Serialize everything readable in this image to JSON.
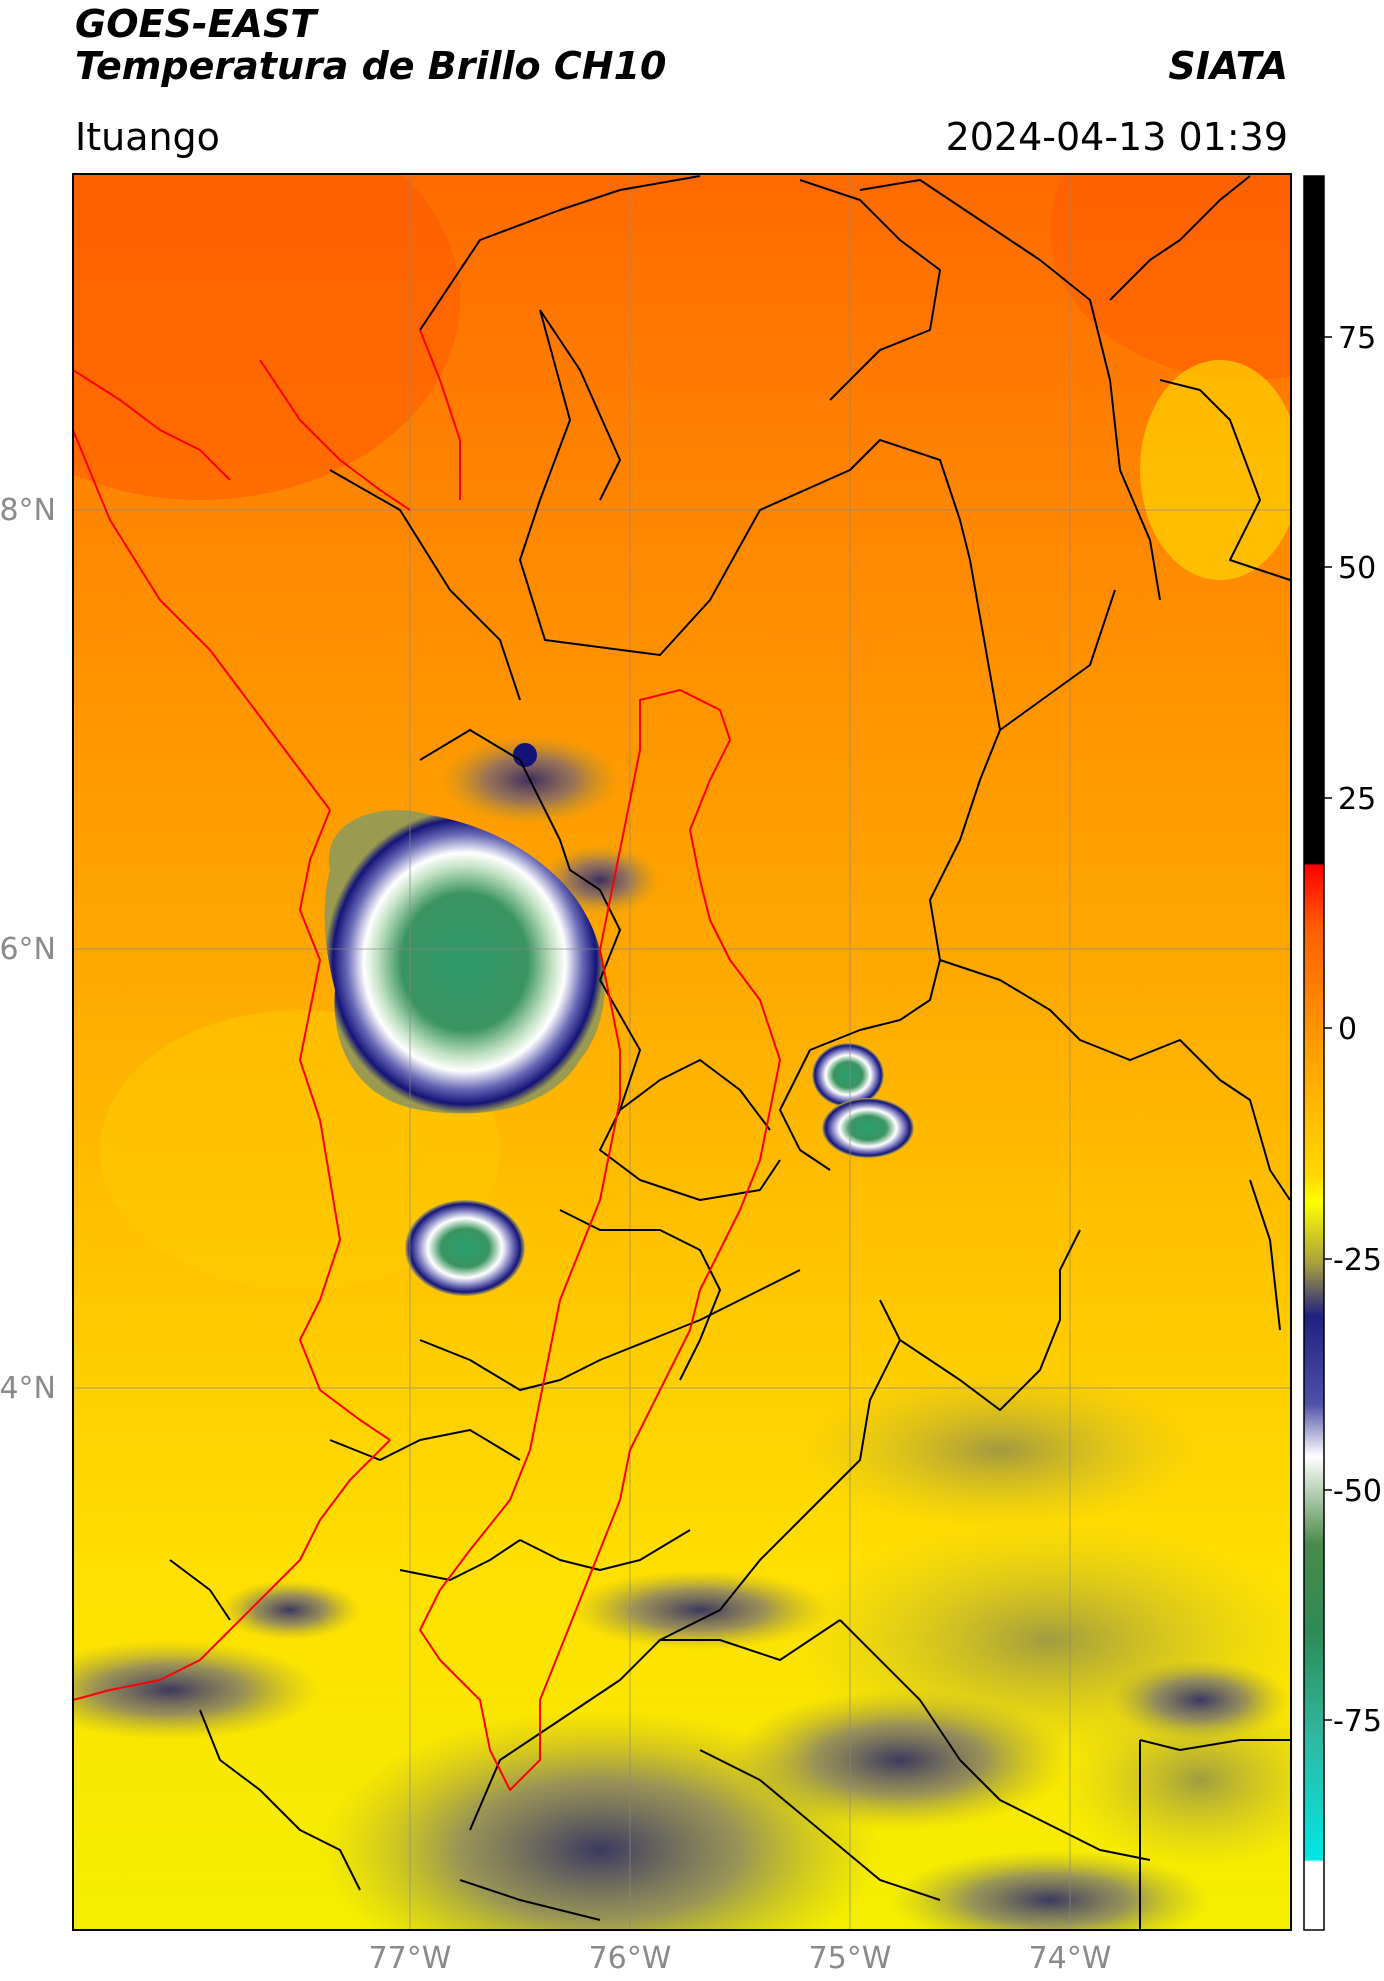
{
  "header": {
    "satellite": "GOES-EAST",
    "product": "Temperatura de Brillo CH10",
    "org": "SIATA",
    "region": "Ituango",
    "datetime": "2024-04-13 01:39"
  },
  "map": {
    "lat_labels": [
      "8°N",
      "6°N",
      "4°N"
    ],
    "lon_labels": [
      "77°W",
      "76°W",
      "75°W",
      "74°W"
    ]
  },
  "colorbar": {
    "ticks": [
      "75",
      "50",
      "25",
      "0",
      "-25",
      "-50",
      "-75"
    ],
    "units": "",
    "colors": {
      "black": "#000000",
      "red": "#ff1a00",
      "orange": "#ff9000",
      "yellow": "#ffff00",
      "olive": "#a09c3c",
      "navy": "#141478",
      "white": "#f4f4f4",
      "green": "#2e8b57",
      "cyan": "#00e6e6"
    }
  }
}
